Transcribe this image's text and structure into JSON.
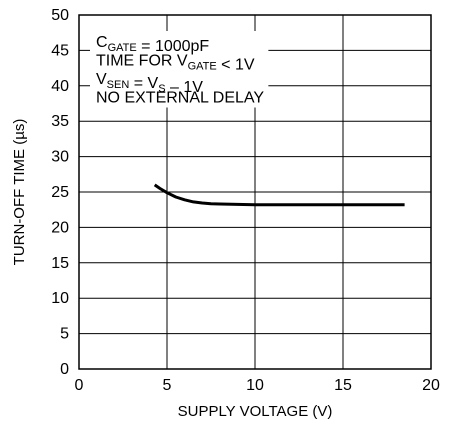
{
  "chart_data": {
    "type": "line",
    "title": "",
    "xlabel": "SUPPLY VOLTAGE (V)",
    "ylabel": "TURN-OFF TIME (µs)",
    "xlim": [
      0,
      20
    ],
    "ylim": [
      0,
      50
    ],
    "xticks": [
      0,
      5,
      10,
      15,
      20
    ],
    "yticks": [
      0,
      5,
      10,
      15,
      20,
      25,
      30,
      35,
      40,
      45,
      50
    ],
    "grid": true,
    "legend": "none",
    "line_color": "#000000",
    "series": [
      {
        "x": [
          4.3,
          4.6,
          5.0,
          5.5,
          6.0,
          6.5,
          7.0,
          7.5,
          8.0,
          9.0,
          10.0,
          12.0,
          14.0,
          16.0,
          18.0,
          18.5
        ],
        "y": [
          26.0,
          25.5,
          24.9,
          24.3,
          23.9,
          23.6,
          23.45,
          23.35,
          23.3,
          23.25,
          23.2,
          23.2,
          23.2,
          23.2,
          23.2,
          23.2
        ]
      }
    ],
    "annotation_lines": [
      [
        {
          "t": "C"
        },
        {
          "t": "GATE",
          "sub": true
        },
        {
          "t": " = 1000pF"
        }
      ],
      [
        {
          "t": "TIME FOR V"
        },
        {
          "t": "GATE",
          "sub": true
        },
        {
          "t": " < 1V"
        }
      ],
      [
        {
          "t": "V"
        },
        {
          "t": "SEN",
          "sub": true
        },
        {
          "t": " = V"
        },
        {
          "t": "S",
          "sub": true
        },
        {
          "t": " – 1V"
        }
      ],
      [
        {
          "t": "NO EXTERNAL DELAY"
        }
      ]
    ]
  }
}
